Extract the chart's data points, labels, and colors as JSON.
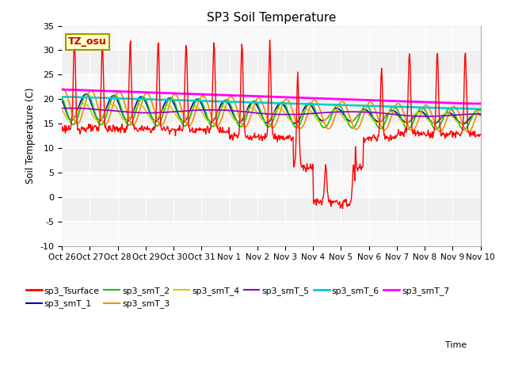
{
  "title": "SP3 Soil Temperature",
  "ylabel": "Soil Temperature (C)",
  "xlabel": "Time",
  "annotation": "TZ_osu",
  "ylim": [
    -10,
    35
  ],
  "background_color": "#f0f0f0",
  "x_tick_labels": [
    "Oct 26",
    "Oct 27",
    "Oct 28",
    "Oct 29",
    "Oct 30",
    "Oct 31",
    "Nov 1",
    "Nov 2",
    "Nov 3",
    "Nov 4",
    "Nov 5",
    "Nov 6",
    "Nov 7",
    "Nov 8",
    "Nov 9",
    "Nov 10"
  ],
  "series_colors": {
    "sp3_Tsurface": "#ff0000",
    "sp3_smT_1": "#0000bb",
    "sp3_smT_2": "#00cc00",
    "sp3_smT_3": "#ff8800",
    "sp3_smT_4": "#cccc00",
    "sp3_smT_5": "#8800cc",
    "sp3_smT_6": "#00cccc",
    "sp3_smT_7": "#ff00ff"
  },
  "yticks": [
    -10,
    -5,
    0,
    5,
    10,
    15,
    20,
    25,
    30,
    35
  ],
  "n_days": 15
}
